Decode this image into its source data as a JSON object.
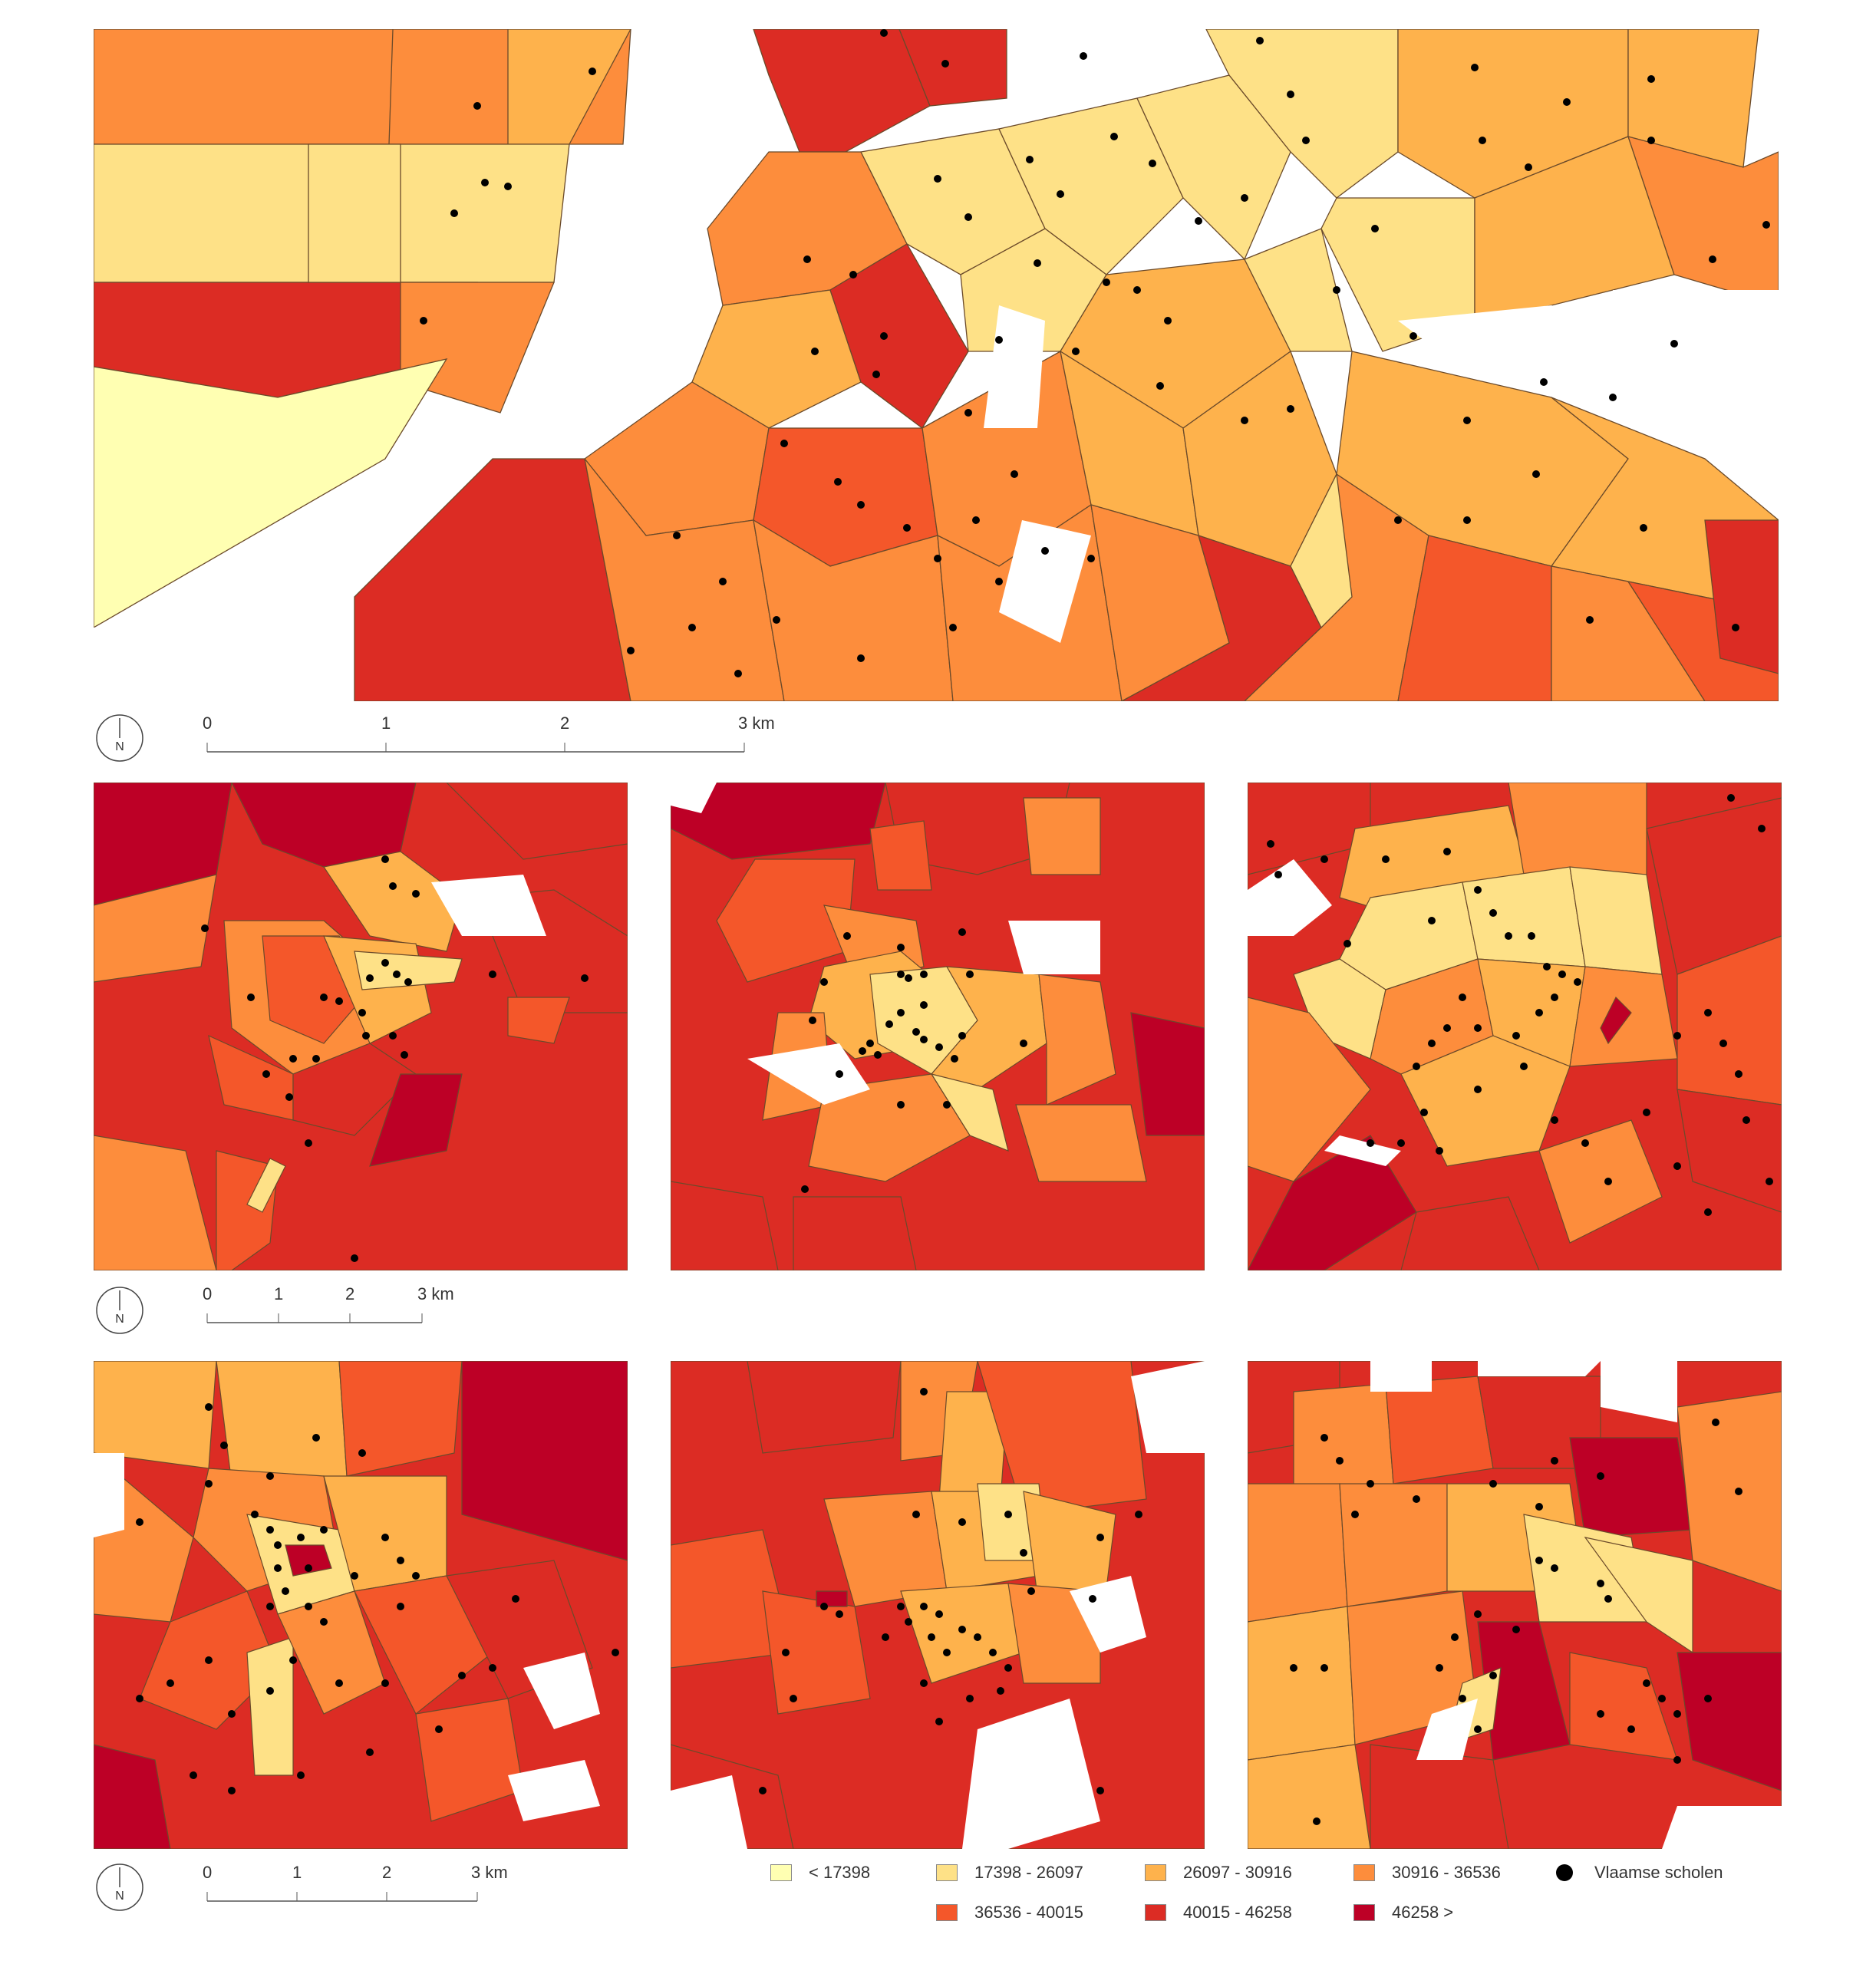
{
  "legend": {
    "classes": [
      {
        "label": "< 17398",
        "color": "#ffffb2"
      },
      {
        "label": "17398 - 26097",
        "color": "#fee187"
      },
      {
        "label": "26097 - 30916",
        "color": "#feb24c"
      },
      {
        "label": "30916 - 36536",
        "color": "#fd8d3c"
      },
      {
        "label": "36536 - 40015",
        "color": "#f4572a"
      },
      {
        "label": "40015 - 46258",
        "color": "#dc2c24"
      },
      {
        "label": "46258 >",
        "color": "#bd0026"
      }
    ],
    "schools_label": "Vlaamse scholen"
  },
  "scalebars": [
    {
      "ticks": [
        "0",
        "1",
        "2",
        "3 km"
      ],
      "north": "N"
    },
    {
      "ticks": [
        "0",
        "1",
        "2",
        "3 km"
      ],
      "north": "N"
    },
    {
      "ticks": [
        "0",
        "1",
        "2",
        "3 km"
      ],
      "north": "N"
    }
  ],
  "colors": {
    "river": "#ffffff",
    "boundary": "#6b4a2a",
    "school": "#000000"
  }
}
